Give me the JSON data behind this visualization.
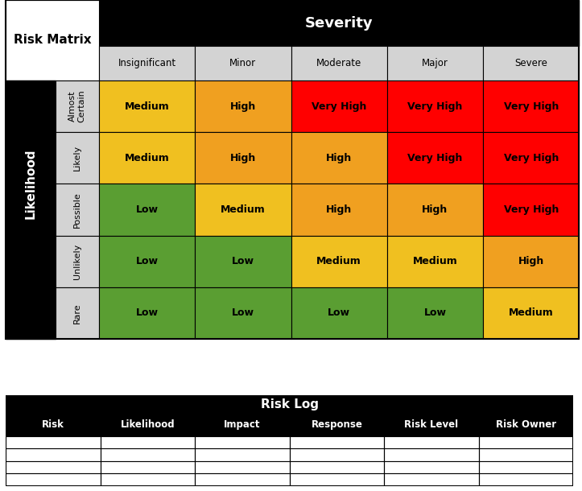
{
  "severity_labels": [
    "Insignificant",
    "Minor",
    "Moderate",
    "Major",
    "Severe"
  ],
  "likelihood_labels": [
    "Almost\nCertain",
    "Likely",
    "Possible",
    "Unlikely"
  ],
  "rare_label": "Rare",
  "matrix_colors": [
    [
      "#F0C020",
      "#F0A020",
      "#FF0000",
      "#FF0000",
      "#FF0000"
    ],
    [
      "#F0C020",
      "#F0A020",
      "#F0A020",
      "#FF0000",
      "#FF0000"
    ],
    [
      "#5A9E32",
      "#F0C020",
      "#F0A020",
      "#F0A020",
      "#FF0000"
    ],
    [
      "#5A9E32",
      "#5A9E32",
      "#F0C020",
      "#F0C020",
      "#F0A020"
    ]
  ],
  "matrix_text": [
    [
      "Medium",
      "High",
      "Very High",
      "Very High",
      "Very High"
    ],
    [
      "Medium",
      "High",
      "High",
      "Very High",
      "Very High"
    ],
    [
      "Low",
      "Medium",
      "High",
      "High",
      "Very High"
    ],
    [
      "Low",
      "Low",
      "Medium",
      "Medium",
      "High"
    ]
  ],
  "rare_colors": [
    "#5A9E32",
    "#5A9E32",
    "#5A9E32",
    "#5A9E32",
    "#F0C020"
  ],
  "rare_text": [
    "Low",
    "Low",
    "Low",
    "Low",
    "Medium"
  ],
  "risk_log_headers": [
    "Risk Log",
    "Risk",
    "Likelihood",
    "Impact",
    "Response",
    "Risk Level",
    "Risk Owner"
  ],
  "color_black": "#000000",
  "color_white": "#FFFFFF",
  "color_lightgray": "#D3D3D3",
  "color_gray_header": "#C0C0C0",
  "text_color_dark": "#8B6914",
  "bg_color": "#FFFFFF"
}
